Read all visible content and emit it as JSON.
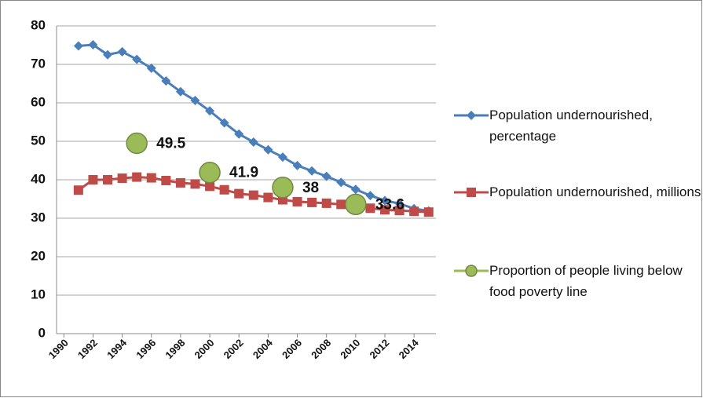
{
  "chart_data": {
    "type": "line",
    "x": [
      1991,
      1992,
      1993,
      1994,
      1995,
      1996,
      1997,
      1998,
      1999,
      2000,
      2001,
      2002,
      2003,
      2004,
      2005,
      2006,
      2007,
      2008,
      2009,
      2010,
      2011,
      2012,
      2013,
      2014,
      2015
    ],
    "series": [
      {
        "name": "Population undernourished, percentage",
        "color": "#4a7ebb",
        "marker": "diamond",
        "values": [
          74.8,
          75.1,
          72.5,
          73.3,
          71.3,
          69.0,
          65.7,
          62.9,
          60.6,
          57.9,
          54.8,
          51.9,
          49.8,
          47.8,
          45.9,
          43.7,
          42.3,
          40.9,
          39.3,
          37.5,
          35.9,
          34.6,
          33.8,
          32.5,
          31.9
        ]
      },
      {
        "name": "Population undernourished, millions",
        "color": "#be4b48",
        "marker": "square",
        "values": [
          37.3,
          40.0,
          40.0,
          40.4,
          40.7,
          40.5,
          39.8,
          39.2,
          38.9,
          38.3,
          37.4,
          36.4,
          36.0,
          35.4,
          34.8,
          34.3,
          34.1,
          33.9,
          33.6,
          33.3,
          32.6,
          32.2,
          32.0,
          31.8,
          31.6
        ]
      },
      {
        "name": "Proportion of people living below food poverty line",
        "color": "#9bbb59",
        "marker": "circle",
        "data_labels": true,
        "values": [
          null,
          null,
          null,
          null,
          49.5,
          null,
          null,
          null,
          null,
          41.9,
          null,
          null,
          null,
          null,
          38,
          null,
          null,
          null,
          null,
          33.6,
          null,
          null,
          null,
          null,
          null
        ]
      }
    ],
    "xlim": [
      1989.5,
      2015.5
    ],
    "xticks": [
      1990,
      1992,
      1994,
      1996,
      1998,
      2000,
      2002,
      2004,
      2006,
      2008,
      2010,
      2012,
      2014
    ],
    "ylim": [
      0,
      80
    ],
    "yticks": [
      0,
      10,
      20,
      30,
      40,
      50,
      60,
      70,
      80
    ],
    "grid": true,
    "legend": "right"
  }
}
